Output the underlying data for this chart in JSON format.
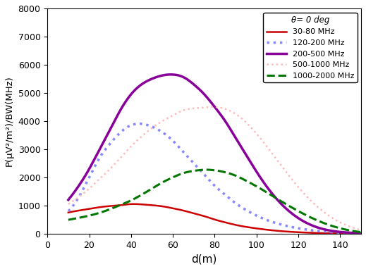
{
  "title": "",
  "xlabel": "d(m)",
  "ylabel": "P(μV²/m²)/BW(MHz)",
  "xlim": [
    0,
    150
  ],
  "ylim": [
    0,
    8000
  ],
  "xticks": [
    0,
    20,
    40,
    60,
    80,
    100,
    120,
    140
  ],
  "yticks": [
    0,
    1000,
    2000,
    3000,
    4000,
    5000,
    6000,
    7000,
    8000
  ],
  "legend_title": "θ= 0 deg",
  "curves": [
    {
      "label": "30-80 MHz",
      "color": "#cc0000",
      "linestyle": "solid",
      "linewidth": 1.8,
      "x": [
        10,
        15,
        20,
        25,
        30,
        35,
        40,
        45,
        50,
        55,
        60,
        65,
        70,
        75,
        80,
        85,
        90,
        95,
        100,
        110,
        120,
        130,
        140,
        150
      ],
      "y": [
        750,
        820,
        880,
        940,
        980,
        1010,
        1050,
        1040,
        1010,
        970,
        900,
        820,
        720,
        620,
        500,
        400,
        310,
        240,
        185,
        100,
        50,
        20,
        5,
        0
      ]
    },
    {
      "label": "120-200 MHz",
      "color": "#8888ff",
      "linestyle": "dotted",
      "linewidth": 2.5,
      "x": [
        10,
        15,
        20,
        25,
        30,
        35,
        40,
        45,
        50,
        55,
        60,
        65,
        70,
        75,
        80,
        85,
        90,
        95,
        100,
        110,
        120,
        130,
        140,
        150
      ],
      "y": [
        800,
        1300,
        2000,
        2700,
        3200,
        3600,
        3850,
        3900,
        3800,
        3600,
        3300,
        2900,
        2500,
        2100,
        1700,
        1380,
        1080,
        840,
        640,
        360,
        190,
        90,
        35,
        10
      ]
    },
    {
      "label": "200-500 MHz",
      "color": "#880099",
      "linestyle": "solid",
      "linewidth": 2.5,
      "x": [
        10,
        15,
        20,
        25,
        30,
        35,
        40,
        45,
        50,
        55,
        60,
        65,
        70,
        75,
        80,
        85,
        90,
        95,
        100,
        110,
        120,
        130,
        140,
        150
      ],
      "y": [
        1200,
        1700,
        2300,
        3000,
        3700,
        4400,
        4950,
        5300,
        5500,
        5620,
        5650,
        5560,
        5300,
        4950,
        4500,
        4000,
        3400,
        2800,
        2200,
        1200,
        550,
        200,
        60,
        10
      ]
    },
    {
      "label": "500-1000 MHz",
      "color": "#ffbbbb",
      "linestyle": "dotted",
      "linewidth": 1.8,
      "x": [
        10,
        15,
        20,
        25,
        30,
        35,
        40,
        45,
        50,
        55,
        60,
        65,
        70,
        75,
        80,
        85,
        90,
        95,
        100,
        110,
        120,
        130,
        140,
        150
      ],
      "y": [
        1050,
        1300,
        1600,
        1950,
        2300,
        2700,
        3100,
        3450,
        3750,
        4000,
        4200,
        4380,
        4450,
        4480,
        4500,
        4430,
        4250,
        3950,
        3550,
        2600,
        1650,
        900,
        400,
        130
      ]
    },
    {
      "label": "1000-2000 MHz",
      "color": "#007700",
      "linestyle": "dashed",
      "linewidth": 2.2,
      "x": [
        10,
        15,
        20,
        25,
        30,
        35,
        40,
        45,
        50,
        55,
        60,
        65,
        70,
        75,
        80,
        85,
        90,
        95,
        100,
        110,
        120,
        130,
        140,
        150
      ],
      "y": [
        490,
        560,
        640,
        740,
        870,
        1020,
        1180,
        1380,
        1600,
        1820,
        2000,
        2150,
        2230,
        2270,
        2250,
        2180,
        2060,
        1880,
        1680,
        1230,
        800,
        440,
        190,
        55
      ]
    }
  ],
  "background_color": "#ffffff"
}
